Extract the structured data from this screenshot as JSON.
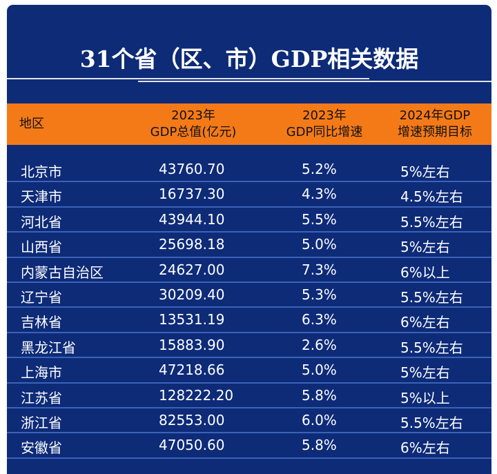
{
  "title": "31个省（区、市）GDP相关数据",
  "headers": [
    {
      "line1": "地区",
      "line2": ""
    },
    {
      "line1": "2023年",
      "line2": "GDP总值(亿元)"
    },
    {
      "line1": "2023年",
      "line2": "GDP同比增速"
    },
    {
      "line1": "2024年GDP",
      "line2": "增速预期目标"
    }
  ],
  "rows": [
    [
      "北京市",
      "43760.70",
      "5.2%",
      "5%左右"
    ],
    [
      "天津市",
      "16737.30",
      "4.3%",
      "4.5%左右"
    ],
    [
      "河北省",
      "43944.10",
      "5.5%",
      "5.5%左右"
    ],
    [
      "山西省",
      "25698.18",
      "5.0%",
      "5%左右"
    ],
    [
      "内蒙古自治区",
      "24627.00",
      "7.3%",
      "6%以上"
    ],
    [
      "辽宁省",
      "30209.40",
      "5.3%",
      "5.5%左右"
    ],
    [
      "吉林省",
      "13531.19",
      "6.3%",
      "6%左右"
    ],
    [
      "黑龙江省",
      "15883.90",
      "2.6%",
      "5.5%左右"
    ],
    [
      "上海市",
      "47218.66",
      "5.0%",
      "5%左右"
    ],
    [
      "江苏省",
      "128222.20",
      "5.8%",
      "5%以上"
    ],
    [
      "浙江省",
      "82553.00",
      "6.0%",
      "5.5%左右"
    ],
    [
      "安徽省",
      "47050.60",
      "5.8%",
      "6%左右"
    ]
  ]
}
